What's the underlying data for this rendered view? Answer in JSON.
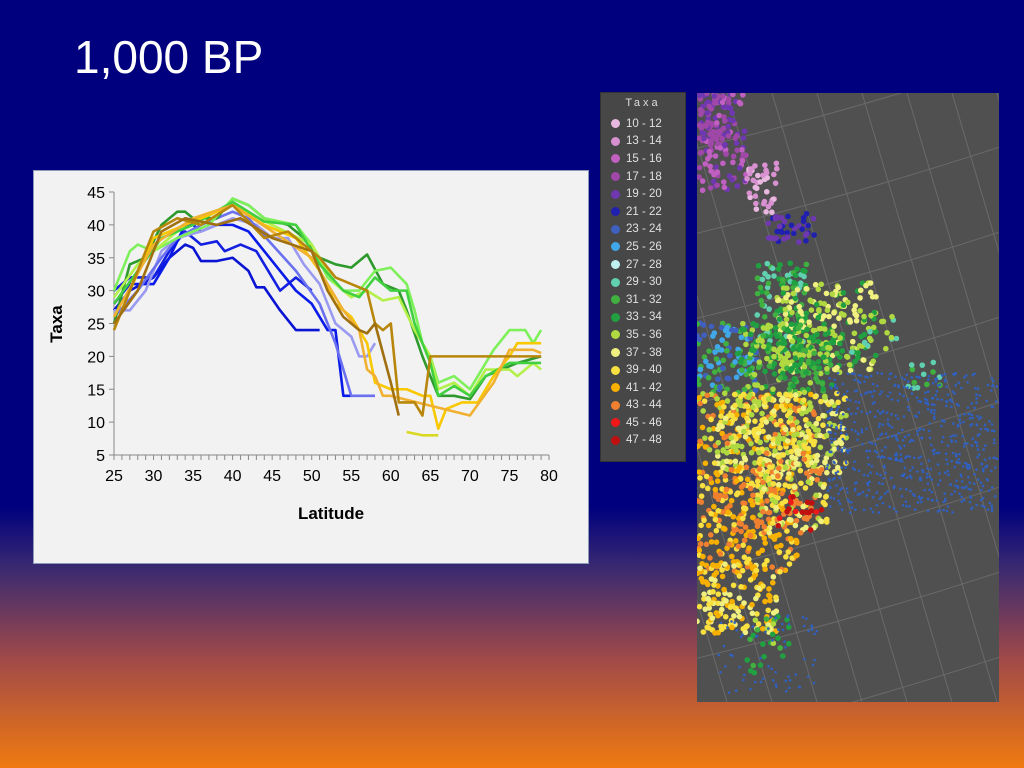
{
  "title": "1,000 BP",
  "chart_data": {
    "type": "line",
    "title": "",
    "xlabel": "Latitude",
    "ylabel": "Taxa",
    "xlim": [
      25,
      80
    ],
    "ylim": [
      5,
      45
    ],
    "xticks": [
      "25",
      "30",
      "35",
      "40",
      "45",
      "50",
      "55",
      "60",
      "65",
      "70",
      "75",
      "80"
    ],
    "yticks": [
      "5",
      "10",
      "15",
      "20",
      "25",
      "30",
      "35",
      "40",
      "45"
    ],
    "grid": false,
    "series": [
      {
        "color": "#0a14d2",
        "points": [
          [
            25,
            27
          ],
          [
            27,
            30
          ],
          [
            30,
            32
          ],
          [
            32,
            35
          ],
          [
            34,
            37
          ],
          [
            35,
            36.5
          ],
          [
            36,
            34.5
          ],
          [
            38,
            34.5
          ],
          [
            40,
            35
          ],
          [
            42,
            33
          ],
          [
            43,
            30.5
          ],
          [
            44,
            30.5
          ],
          [
            46,
            27
          ],
          [
            48,
            24
          ],
          [
            51,
            24
          ]
        ]
      },
      {
        "color": "#1420e0",
        "points": [
          [
            25,
            30
          ],
          [
            27,
            32
          ],
          [
            30,
            32
          ],
          [
            32,
            36
          ],
          [
            34,
            39
          ],
          [
            35,
            38
          ],
          [
            36,
            37
          ],
          [
            38,
            37.5
          ],
          [
            39,
            36
          ],
          [
            41,
            37
          ],
          [
            43,
            36
          ],
          [
            45,
            32
          ],
          [
            46,
            30
          ],
          [
            47,
            31
          ],
          [
            48,
            32
          ],
          [
            49,
            31
          ],
          [
            50,
            30
          ]
        ]
      },
      {
        "color": "#0a1ae8",
        "points": [
          [
            25,
            28
          ],
          [
            27,
            31
          ],
          [
            30,
            31
          ],
          [
            32,
            35
          ],
          [
            34,
            40
          ],
          [
            35,
            40
          ],
          [
            36,
            39
          ],
          [
            38,
            40
          ],
          [
            40,
            40
          ],
          [
            42,
            39
          ],
          [
            44,
            36
          ],
          [
            46,
            33
          ],
          [
            48,
            30
          ],
          [
            50,
            28
          ],
          [
            51,
            26
          ],
          [
            52,
            24
          ],
          [
            53,
            24
          ],
          [
            54,
            14
          ],
          [
            55,
            14
          ]
        ]
      },
      {
        "color": "#9a9af0",
        "points": [
          [
            25,
            27
          ],
          [
            27,
            27
          ],
          [
            29,
            30
          ],
          [
            31,
            36
          ],
          [
            33,
            38
          ],
          [
            36,
            39
          ],
          [
            40,
            41
          ],
          [
            43,
            40
          ],
          [
            45,
            38
          ],
          [
            47,
            38
          ],
          [
            49,
            34
          ],
          [
            51,
            31
          ],
          [
            53,
            25
          ],
          [
            55,
            23
          ],
          [
            56,
            20
          ],
          [
            57,
            20
          ],
          [
            58,
            22
          ]
        ]
      },
      {
        "color": "#6a70f0",
        "points": [
          [
            25,
            26
          ],
          [
            28,
            30
          ],
          [
            31,
            35
          ],
          [
            33,
            38
          ],
          [
            36,
            40
          ],
          [
            40,
            42
          ],
          [
            42,
            41
          ],
          [
            45,
            37
          ],
          [
            48,
            33
          ],
          [
            51,
            28
          ],
          [
            53,
            22
          ],
          [
            54,
            18
          ],
          [
            55,
            14
          ],
          [
            56,
            14
          ],
          [
            58,
            14
          ]
        ]
      },
      {
        "color": "#2e9a2e",
        "points": [
          [
            25,
            25
          ],
          [
            27,
            34
          ],
          [
            29,
            35
          ],
          [
            31,
            40
          ],
          [
            33,
            42
          ],
          [
            34,
            42
          ],
          [
            35,
            41
          ],
          [
            38,
            41
          ],
          [
            40,
            44
          ],
          [
            42,
            43
          ],
          [
            44,
            41
          ],
          [
            47,
            40
          ],
          [
            49,
            38
          ],
          [
            51,
            35
          ],
          [
            53,
            34
          ],
          [
            55,
            33.5
          ],
          [
            57,
            35.5
          ],
          [
            59,
            31
          ],
          [
            61,
            30
          ],
          [
            62,
            27
          ],
          [
            64,
            20
          ],
          [
            66,
            14
          ],
          [
            68,
            14
          ],
          [
            70,
            13.5
          ],
          [
            72,
            17
          ],
          [
            76,
            19
          ],
          [
            79,
            20
          ]
        ]
      },
      {
        "color": "#7ef05a",
        "points": [
          [
            25,
            30
          ],
          [
            27,
            36
          ],
          [
            28,
            37
          ],
          [
            30,
            36
          ],
          [
            33,
            38
          ],
          [
            37,
            40
          ],
          [
            40,
            44
          ],
          [
            42,
            43
          ],
          [
            44,
            41
          ],
          [
            48,
            40
          ],
          [
            50,
            37
          ],
          [
            52,
            32
          ],
          [
            54,
            30
          ],
          [
            56,
            30
          ],
          [
            58,
            33
          ],
          [
            60,
            33.5
          ],
          [
            62,
            31
          ],
          [
            63,
            27
          ],
          [
            64,
            22
          ],
          [
            65,
            20
          ],
          [
            66,
            16
          ],
          [
            68,
            17
          ],
          [
            70,
            15
          ],
          [
            73,
            21
          ],
          [
            75,
            24
          ],
          [
            77,
            24
          ],
          [
            78,
            22
          ],
          [
            79,
            24
          ]
        ]
      },
      {
        "color": "#b4f04a",
        "points": [
          [
            25,
            29
          ],
          [
            28,
            34
          ],
          [
            31,
            37
          ],
          [
            35,
            41
          ],
          [
            40,
            43
          ],
          [
            45,
            40
          ],
          [
            50,
            37
          ],
          [
            53,
            31
          ],
          [
            55,
            29
          ],
          [
            57,
            30
          ],
          [
            59,
            28.5
          ],
          [
            61,
            29
          ],
          [
            63,
            24
          ],
          [
            65,
            20
          ],
          [
            66,
            15
          ],
          [
            68,
            16
          ],
          [
            70,
            14
          ],
          [
            72,
            18
          ],
          [
            75,
            18
          ],
          [
            76,
            17
          ],
          [
            78,
            19
          ],
          [
            79,
            18
          ]
        ]
      },
      {
        "color": "#40d040",
        "points": [
          [
            25,
            28
          ],
          [
            28,
            33
          ],
          [
            31,
            38
          ],
          [
            35,
            40
          ],
          [
            40,
            43.5
          ],
          [
            44,
            40.5
          ],
          [
            48,
            40
          ],
          [
            51,
            34
          ],
          [
            54,
            30
          ],
          [
            56,
            29
          ],
          [
            58,
            32
          ],
          [
            60,
            30
          ],
          [
            62,
            30
          ],
          [
            63,
            25
          ],
          [
            65,
            19
          ],
          [
            66,
            14
          ],
          [
            68,
            15.5
          ],
          [
            70,
            14
          ],
          [
            72,
            17
          ],
          [
            75,
            19
          ],
          [
            78,
            19
          ],
          [
            79,
            19
          ]
        ]
      },
      {
        "color": "#f8c800",
        "points": [
          [
            25,
            24
          ],
          [
            27,
            30
          ],
          [
            30,
            38
          ],
          [
            34,
            40
          ],
          [
            40,
            43
          ],
          [
            44,
            40
          ],
          [
            48,
            38
          ],
          [
            51,
            33
          ],
          [
            53,
            28
          ],
          [
            55,
            26
          ],
          [
            57,
            22
          ],
          [
            58,
            16
          ],
          [
            60,
            15
          ],
          [
            62,
            15
          ],
          [
            64,
            14
          ],
          [
            65,
            14
          ],
          [
            66,
            9
          ],
          [
            67,
            12
          ],
          [
            69,
            13
          ],
          [
            71,
            13
          ],
          [
            73,
            17
          ],
          [
            75,
            20
          ],
          [
            76,
            22
          ],
          [
            79,
            22
          ]
        ]
      },
      {
        "color": "#d8d820",
        "points": [
          [
            62,
            8.5
          ],
          [
            64,
            8
          ],
          [
            66,
            8
          ]
        ]
      },
      {
        "color": "#f0b030",
        "points": [
          [
            25,
            26
          ],
          [
            30,
            37
          ],
          [
            35,
            41
          ],
          [
            40,
            43
          ],
          [
            45,
            39
          ],
          [
            50,
            35
          ],
          [
            54,
            27
          ],
          [
            56,
            24
          ],
          [
            57,
            18
          ],
          [
            58,
            17
          ],
          [
            59,
            14
          ],
          [
            60,
            14
          ],
          [
            70,
            11
          ],
          [
            73,
            16
          ],
          [
            75,
            21
          ],
          [
            78,
            21
          ],
          [
            79,
            20.5
          ]
        ]
      },
      {
        "color": "#b8860b",
        "points": [
          [
            25,
            24
          ],
          [
            27,
            30
          ],
          [
            30,
            39
          ],
          [
            33,
            41
          ],
          [
            36,
            40
          ],
          [
            40,
            43
          ],
          [
            44,
            38
          ],
          [
            47,
            39
          ],
          [
            49,
            37
          ],
          [
            51,
            35
          ],
          [
            53,
            32
          ],
          [
            55,
            31
          ],
          [
            57,
            30
          ],
          [
            58,
            25
          ],
          [
            59,
            24
          ],
          [
            60,
            25
          ],
          [
            61,
            13
          ],
          [
            63,
            13
          ],
          [
            64,
            11
          ],
          [
            65,
            20
          ],
          [
            72,
            20
          ],
          [
            79,
            20
          ]
        ]
      },
      {
        "color": "#a07010",
        "points": [
          [
            25,
            25
          ],
          [
            28,
            30
          ],
          [
            31,
            39
          ],
          [
            34,
            41
          ],
          [
            38,
            40
          ],
          [
            41,
            41
          ],
          [
            45,
            38
          ],
          [
            50,
            36
          ],
          [
            52,
            30
          ],
          [
            54,
            26
          ],
          [
            56,
            24
          ],
          [
            57,
            23.5
          ],
          [
            58,
            25
          ],
          [
            60,
            16
          ],
          [
            61,
            11
          ]
        ]
      }
    ]
  },
  "legend": {
    "title": "Taxa",
    "items": [
      {
        "label": "10 - 12",
        "color": "#e8b8e0"
      },
      {
        "label": "13 - 14",
        "color": "#d890d0"
      },
      {
        "label": "15 - 16",
        "color": "#c060c0"
      },
      {
        "label": "17 - 18",
        "color": "#a048a8"
      },
      {
        "label": "19 - 20",
        "color": "#7038b0"
      },
      {
        "label": "21 - 22",
        "color": "#2020b0"
      },
      {
        "label": "23 - 24",
        "color": "#4060c0"
      },
      {
        "label": "25 - 26",
        "color": "#40a8e8"
      },
      {
        "label": "27 - 28",
        "color": "#c0f0f0"
      },
      {
        "label": "29 - 30",
        "color": "#60d0b0"
      },
      {
        "label": "31 - 32",
        "color": "#40b040"
      },
      {
        "label": "33 - 34",
        "color": "#20a040"
      },
      {
        "label": "35 - 36",
        "color": "#b0d840"
      },
      {
        "label": "37 - 38",
        "color": "#f0f080"
      },
      {
        "label": "39 - 40",
        "color": "#f8e040"
      },
      {
        "label": "41 - 42",
        "color": "#f8b000"
      },
      {
        "label": "43 - 44",
        "color": "#f08030"
      },
      {
        "label": "45 - 46",
        "color": "#f01818"
      },
      {
        "label": "47 - 48",
        "color": "#c01010"
      }
    ]
  }
}
